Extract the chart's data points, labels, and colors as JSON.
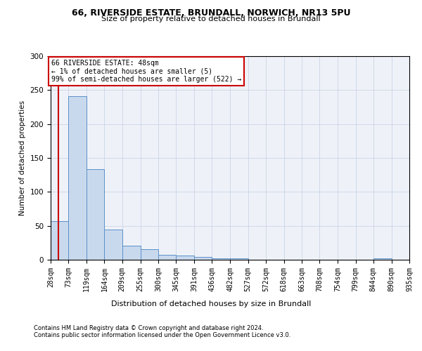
{
  "title1": "66, RIVERSIDE ESTATE, BRUNDALL, NORWICH, NR13 5PU",
  "title2": "Size of property relative to detached houses in Brundall",
  "xlabel": "Distribution of detached houses by size in Brundall",
  "ylabel": "Number of detached properties",
  "footer1": "Contains HM Land Registry data © Crown copyright and database right 2024.",
  "footer2": "Contains public sector information licensed under the Open Government Licence v3.0.",
  "annotation_title": "66 RIVERSIDE ESTATE: 48sqm",
  "annotation_line1": "← 1% of detached houses are smaller (5)",
  "annotation_line2": "99% of semi-detached houses are larger (522) →",
  "property_size": 48,
  "bar_color": "#c9d9ed",
  "bar_edge_color": "#5b8fc9",
  "vline_color": "#cc0000",
  "annotation_box_edge": "#cc0000",
  "bin_edges": [
    28,
    73,
    119,
    164,
    209,
    255,
    300,
    345,
    391,
    436,
    482,
    527,
    572,
    618,
    663,
    708,
    754,
    799,
    844,
    890,
    935
  ],
  "bin_counts": [
    57,
    241,
    133,
    44,
    21,
    16,
    7,
    6,
    4,
    2,
    2,
    0,
    0,
    0,
    0,
    0,
    0,
    0,
    2,
    0
  ],
  "ylim": [
    0,
    300
  ],
  "yticks": [
    0,
    50,
    100,
    150,
    200,
    250,
    300
  ],
  "grid_color": "#d0d8e8",
  "bg_color": "#eef2f8",
  "title1_fontsize": 9,
  "title2_fontsize": 8,
  "ylabel_fontsize": 7.5,
  "xlabel_fontsize": 8,
  "ytick_fontsize": 7.5,
  "xtick_fontsize": 7,
  "footer_fontsize": 6,
  "ann_fontsize": 7
}
